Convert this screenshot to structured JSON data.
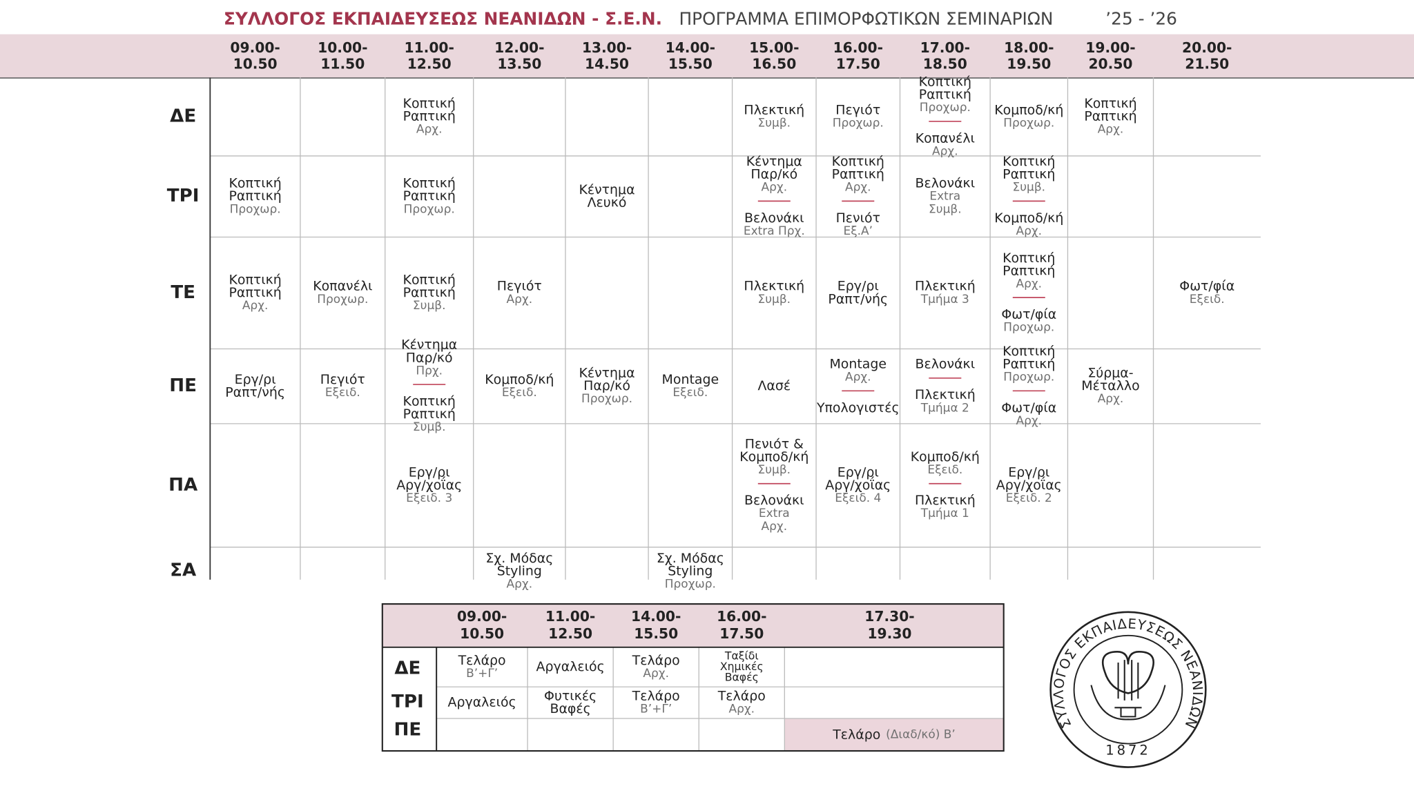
{
  "header": {
    "org": "ΣΥΛΛΟΓΟΣ ΕΚΠΑΙΔΕΥΣΕΩΣ ΝΕΑΝΙΔΩΝ - Σ.Ε.Ν.",
    "title": "ΠΡΟΓΡΑΜΜΑ ΕΠΙΜΟΡΦΩΤΙΚΩΝ ΣΕΜΙΝΑΡΙΩΝ",
    "year": "’25 - ’26"
  },
  "main": {
    "times": [
      [
        "09.00-",
        "10.50"
      ],
      [
        "10.00-",
        "11.50"
      ],
      [
        "11.00-",
        "12.50"
      ],
      [
        "12.00-",
        "13.50"
      ],
      [
        "13.00-",
        "14.50"
      ],
      [
        "14.00-",
        "15.50"
      ],
      [
        "15.00-",
        "16.50"
      ],
      [
        "16.00-",
        "17.50"
      ],
      [
        "17.00-",
        "18.50"
      ],
      [
        "18.00-",
        "19.50"
      ],
      [
        "19.00-",
        "20.50"
      ],
      [
        "20.00-",
        "21.50"
      ]
    ],
    "days": [
      "ΔΕ",
      "ΤΡΙ",
      "ΤΕ",
      "ΠΕ",
      "ΠΑ",
      "ΣΑ"
    ],
    "cells": [
      [
        [],
        [],
        [
          {
            "name": [
              "Κοπτική",
              "Ραπτική"
            ],
            "level": [
              "Αρχ."
            ]
          }
        ],
        [],
        [],
        [],
        [
          {
            "name": [
              "Πλεκτική"
            ],
            "level": [
              "Συμβ."
            ]
          }
        ],
        [
          {
            "name": [
              "Πεγιότ"
            ],
            "level": [
              "Προχωρ."
            ]
          }
        ],
        [
          {
            "name": [
              "Κοπτική",
              "Ραπτική"
            ],
            "level": [
              "Προχωρ."
            ]
          },
          {
            "name": [
              "Κοπανέλι"
            ],
            "level": [
              "Αρχ."
            ]
          }
        ],
        [
          {
            "name": [
              "Κομποδ/κή"
            ],
            "level": [
              "Προχωρ."
            ]
          }
        ],
        [
          {
            "name": [
              "Κοπτική",
              "Ραπτική"
            ],
            "level": [
              "Αρχ."
            ]
          }
        ],
        []
      ],
      [
        [
          {
            "name": [
              "Κοπτική",
              "Ραπτική"
            ],
            "level": [
              "Προχωρ."
            ]
          }
        ],
        [],
        [
          {
            "name": [
              "Κοπτική",
              "Ραπτική"
            ],
            "level": [
              "Προχωρ."
            ]
          }
        ],
        [],
        [
          {
            "name": [
              "Κέντημα",
              "Λευκό"
            ],
            "level": []
          }
        ],
        [],
        [
          {
            "name": [
              "Κέντημα",
              "Παρ/κό"
            ],
            "level": [
              "Αρχ."
            ]
          },
          {
            "name": [
              "Βελονάκι"
            ],
            "level": [
              "Extra Πρχ."
            ]
          }
        ],
        [
          {
            "name": [
              "Κοπτική",
              "Ραπτική"
            ],
            "level": [
              "Αρχ."
            ]
          },
          {
            "name": [
              "Πενιότ"
            ],
            "level": [
              "Εξ.Α’"
            ]
          }
        ],
        [
          {
            "name": [
              "Βελονάκι"
            ],
            "level": [
              "Extra",
              "Συμβ."
            ]
          }
        ],
        [
          {
            "name": [
              "Κοπτική",
              "Ραπτική"
            ],
            "level": [
              "Συμβ."
            ]
          },
          {
            "name": [
              "Κομποδ/κή"
            ],
            "level": [
              "Αρχ."
            ]
          }
        ],
        [],
        []
      ],
      [
        [
          {
            "name": [
              "Κοπτική",
              "Ραπτική"
            ],
            "level": [
              "Αρχ."
            ]
          }
        ],
        [
          {
            "name": [
              "Κοπανέλι"
            ],
            "level": [
              "Προχωρ."
            ]
          }
        ],
        [
          {
            "name": [
              "Κοπτική",
              "Ραπτική"
            ],
            "level": [
              "Συμβ."
            ]
          }
        ],
        [
          {
            "name": [
              "Πεγιότ"
            ],
            "level": [
              "Αρχ."
            ]
          }
        ],
        [],
        [],
        [
          {
            "name": [
              "Πλεκτική"
            ],
            "level": [
              "Συμβ."
            ]
          }
        ],
        [
          {
            "name": [
              "Εργ/ρι",
              "Ραπτ/νής"
            ],
            "level": []
          }
        ],
        [
          {
            "name": [
              "Πλεκτική"
            ],
            "level": [
              "Τμήμα 3"
            ]
          }
        ],
        [
          {
            "name": [
              "Κοπτική",
              "Ραπτική"
            ],
            "level": [
              "Αρχ."
            ]
          },
          {
            "name": [
              "Φωτ/φία"
            ],
            "level": [
              "Προχωρ."
            ]
          }
        ],
        [],
        [
          {
            "name": [
              "Φωτ/φία"
            ],
            "level": [
              "Εξειδ."
            ]
          }
        ]
      ],
      [
        [
          {
            "name": [
              "Εργ/ρι",
              "Ραπτ/νής"
            ],
            "level": []
          }
        ],
        [
          {
            "name": [
              "Πεγιότ"
            ],
            "level": [
              "Εξειδ."
            ]
          }
        ],
        [
          {
            "name": [
              "Κέντημα",
              "Παρ/κό"
            ],
            "level": [
              "Πρχ."
            ]
          },
          {
            "name": [
              "Κοπτική",
              "Ραπτική"
            ],
            "level": [
              "Συμβ."
            ]
          }
        ],
        [
          {
            "name": [
              "Κομποδ/κή"
            ],
            "level": [
              "Εξειδ."
            ]
          }
        ],
        [
          {
            "name": [
              "Κέντημα",
              "Παρ/κό"
            ],
            "level": [
              "Προχωρ."
            ]
          }
        ],
        [
          {
            "name": [
              "Montage"
            ],
            "level": [
              "Εξειδ."
            ]
          }
        ],
        [
          {
            "name": [
              "Λασέ"
            ],
            "level": []
          }
        ],
        [
          {
            "name": [
              "Montage"
            ],
            "level": [
              "Αρχ."
            ]
          },
          {
            "name": [
              "Υπολογιστές"
            ],
            "level": []
          }
        ],
        [
          {
            "name": [
              "Βελονάκι"
            ],
            "level": []
          },
          {
            "name": [
              "Πλεκτική"
            ],
            "level": [
              "Τμήμα 2"
            ]
          }
        ],
        [
          {
            "name": [
              "Κοπτική",
              "Ραπτική"
            ],
            "level": [
              "Προχωρ."
            ]
          },
          {
            "name": [
              "Φωτ/φία"
            ],
            "level": [
              "Αρχ."
            ]
          }
        ],
        [
          {
            "name": [
              "Σύρμα-",
              "Μέταλλο"
            ],
            "level": [
              "Αρχ."
            ]
          }
        ],
        []
      ],
      [
        [],
        [],
        [
          {
            "name": [
              "Εργ/ρι",
              "Αργ/χοΐας"
            ],
            "level": [
              "Εξειδ. 3"
            ]
          }
        ],
        [],
        [],
        [],
        [
          {
            "name": [
              "Πενιότ &",
              "Κομποδ/κή"
            ],
            "level": [
              "Συμβ."
            ]
          },
          {
            "name": [
              "Βελονάκι"
            ],
            "level": [
              "Extra",
              "Αρχ."
            ]
          }
        ],
        [
          {
            "name": [
              "Εργ/ρι",
              "Αργ/χοΐας"
            ],
            "level": [
              "Εξειδ. 4"
            ]
          }
        ],
        [
          {
            "name": [
              "Κομποδ/κή"
            ],
            "level": [
              "Εξειδ."
            ]
          },
          {
            "name": [
              "Πλεκτική"
            ],
            "level": [
              "Τμήμα 1"
            ]
          }
        ],
        [
          {
            "name": [
              "Εργ/ρι",
              "Αργ/χοΐας"
            ],
            "level": [
              "Εξειδ. 2"
            ]
          }
        ],
        [],
        []
      ],
      [
        [],
        [],
        [],
        [
          {
            "name": [
              "Σχ. Μόδας",
              "Styling"
            ],
            "level": [
              "Αρχ."
            ]
          }
        ],
        [],
        [
          {
            "name": [
              "Σχ. Μόδας",
              "Styling"
            ],
            "level": [
              "Προχωρ."
            ]
          }
        ],
        [],
        [],
        [],
        [],
        [],
        []
      ]
    ]
  },
  "second": {
    "times": [
      [
        "09.00-",
        "10.50"
      ],
      [
        "11.00-",
        "12.50"
      ],
      [
        "14.00-",
        "15.50"
      ],
      [
        "16.00-",
        "17.50"
      ],
      [
        "17.30-",
        "19.30"
      ]
    ],
    "days": [
      "ΔΕ",
      "ΤΡΙ",
      "ΠΕ"
    ],
    "cells": [
      [
        [
          {
            "name": [
              "Τελάρο"
            ],
            "level": [
              "Β’+Γ’"
            ]
          }
        ],
        [
          {
            "name": [
              "Αργαλειός"
            ],
            "level": []
          }
        ],
        [
          {
            "name": [
              "Τελάρο"
            ],
            "level": [
              "Αρχ."
            ]
          }
        ],
        [
          {
            "name": [
              "Ταξίδι",
              "Χημικές",
              "Βαφές"
            ],
            "level": []
          }
        ],
        []
      ],
      [
        [
          {
            "name": [
              "Αργαλειός"
            ],
            "level": []
          }
        ],
        [
          {
            "name": [
              "Φυτικές",
              "Βαφές"
            ],
            "level": []
          }
        ],
        [
          {
            "name": [
              "Τελάρο"
            ],
            "level": [
              "Β’+Γ’"
            ]
          }
        ],
        [
          {
            "name": [
              "Τελάρο"
            ],
            "level": [
              "Αρχ."
            ]
          }
        ],
        []
      ],
      [
        [],
        [],
        [],
        [],
        [
          {
            "name": [
              "Τελάρο"
            ],
            "level": [
              "(Διαδ/κό) Β’"
            ]
          }
        ]
      ]
    ]
  },
  "logo": {
    "text": "ΣΥΛΛΟΓΟΣ ΕΚΠΑΙΔΕΥΣΕΩΣ ΝΕΑΝΙΔΩΝ",
    "year": "1872"
  }
}
